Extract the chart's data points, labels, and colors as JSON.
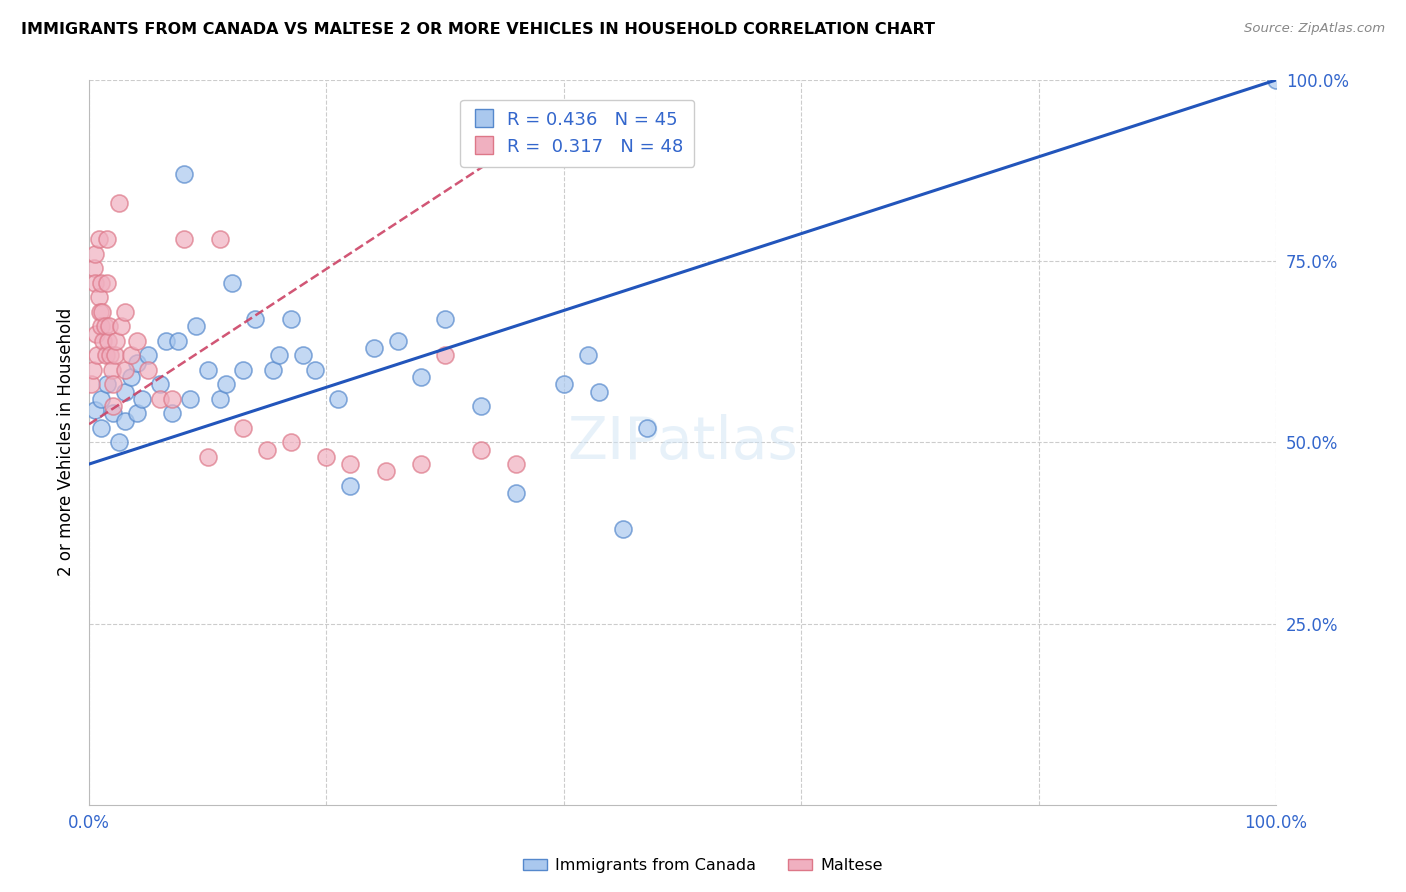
{
  "title": "IMMIGRANTS FROM CANADA VS MALTESE 2 OR MORE VEHICLES IN HOUSEHOLD CORRELATION CHART",
  "source": "Source: ZipAtlas.com",
  "ylabel": "2 or more Vehicles in Household",
  "xlim": [
    0,
    1
  ],
  "ylim": [
    0,
    1
  ],
  "ytick_positions": [
    0.25,
    0.5,
    0.75,
    1.0
  ],
  "yticklabels_right": [
    "25.0%",
    "50.0%",
    "75.0%",
    "100.0%"
  ],
  "blue_R": 0.436,
  "blue_N": 45,
  "pink_R": 0.317,
  "pink_N": 48,
  "blue_color": "#aac8ee",
  "pink_color": "#f0b0c0",
  "blue_edge_color": "#5588cc",
  "pink_edge_color": "#dd7788",
  "blue_line_color": "#2255bb",
  "pink_line_color": "#cc4466",
  "legend_color": "#3366cc",
  "legend_N_color": "#33aa33",
  "blue_line_x0": 0.0,
  "blue_line_y0": 0.47,
  "blue_line_x1": 1.0,
  "blue_line_y1": 1.0,
  "pink_line_x0": 0.0,
  "pink_line_y0": 0.525,
  "pink_line_x1": 0.35,
  "pink_line_y1": 0.9,
  "blue_scatter_x": [
    0.005,
    0.01,
    0.01,
    0.015,
    0.02,
    0.025,
    0.03,
    0.03,
    0.035,
    0.04,
    0.04,
    0.045,
    0.05,
    0.06,
    0.065,
    0.07,
    0.075,
    0.08,
    0.085,
    0.09,
    0.1,
    0.11,
    0.115,
    0.12,
    0.13,
    0.14,
    0.155,
    0.16,
    0.17,
    0.18,
    0.19,
    0.21,
    0.22,
    0.24,
    0.26,
    0.28,
    0.3,
    0.33,
    0.36,
    0.4,
    0.42,
    0.43,
    0.45,
    0.47,
    1.0
  ],
  "blue_scatter_y": [
    0.545,
    0.56,
    0.52,
    0.58,
    0.54,
    0.5,
    0.57,
    0.53,
    0.59,
    0.54,
    0.61,
    0.56,
    0.62,
    0.58,
    0.64,
    0.54,
    0.64,
    0.87,
    0.56,
    0.66,
    0.6,
    0.56,
    0.58,
    0.72,
    0.6,
    0.67,
    0.6,
    0.62,
    0.67,
    0.62,
    0.6,
    0.56,
    0.44,
    0.63,
    0.64,
    0.59,
    0.67,
    0.55,
    0.43,
    0.58,
    0.62,
    0.57,
    0.38,
    0.52,
    1.0
  ],
  "pink_scatter_x": [
    0.002,
    0.003,
    0.004,
    0.005,
    0.005,
    0.006,
    0.007,
    0.008,
    0.008,
    0.009,
    0.01,
    0.01,
    0.011,
    0.012,
    0.013,
    0.014,
    0.015,
    0.015,
    0.016,
    0.017,
    0.018,
    0.019,
    0.02,
    0.02,
    0.022,
    0.023,
    0.025,
    0.027,
    0.03,
    0.03,
    0.035,
    0.04,
    0.05,
    0.06,
    0.07,
    0.08,
    0.1,
    0.11,
    0.13,
    0.15,
    0.17,
    0.2,
    0.22,
    0.25,
    0.28,
    0.3,
    0.33,
    0.36
  ],
  "pink_scatter_y": [
    0.58,
    0.6,
    0.74,
    0.76,
    0.72,
    0.65,
    0.62,
    0.78,
    0.7,
    0.68,
    0.72,
    0.66,
    0.68,
    0.64,
    0.66,
    0.62,
    0.78,
    0.72,
    0.64,
    0.66,
    0.62,
    0.6,
    0.58,
    0.55,
    0.62,
    0.64,
    0.83,
    0.66,
    0.68,
    0.6,
    0.62,
    0.64,
    0.6,
    0.56,
    0.56,
    0.78,
    0.48,
    0.78,
    0.52,
    0.49,
    0.5,
    0.48,
    0.47,
    0.46,
    0.47,
    0.62,
    0.49,
    0.47
  ]
}
